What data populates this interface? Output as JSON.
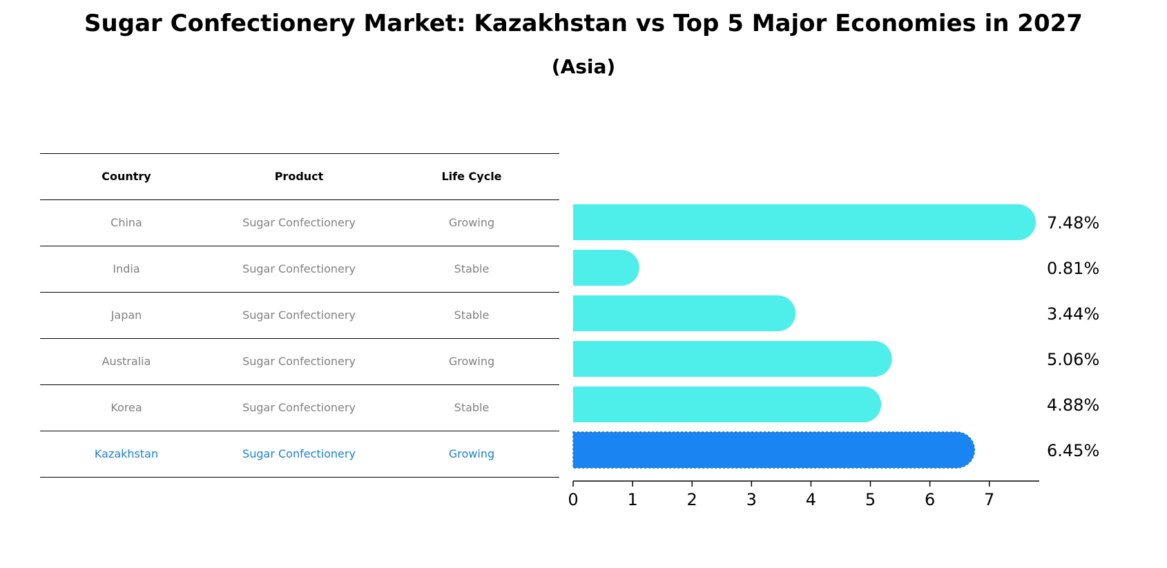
{
  "title": "Sugar Confectionery Market: Kazakhstan vs Top 5 Major Economies in 2027",
  "subtitle": "(Asia)",
  "table": {
    "headers": [
      "Country",
      "Product",
      "Life Cycle"
    ],
    "rows": [
      {
        "country": "China",
        "product": "Sugar Confectionery",
        "life_cycle": "Growing"
      },
      {
        "country": "India",
        "product": "Sugar Confectionery",
        "life_cycle": "Stable"
      },
      {
        "country": "Japan",
        "product": "Sugar Confectionery",
        "life_cycle": "Stable"
      },
      {
        "country": "Australia",
        "product": "Sugar Confectionery",
        "life_cycle": "Growing"
      },
      {
        "country": "Korea",
        "product": "Sugar Confectionery",
        "life_cycle": "Stable"
      },
      {
        "country": "Kazakhstan",
        "product": "Sugar Confectionery",
        "life_cycle": "Growing"
      }
    ]
  },
  "chart_data": {
    "type": "bar",
    "orientation": "horizontal",
    "title": "Sugar Confectionery Market: Kazakhstan vs Top 5 Major Economies in 2027",
    "subtitle": "(Asia)",
    "categories": [
      "China",
      "India",
      "Japan",
      "Australia",
      "Korea",
      "Kazakhstan"
    ],
    "values": [
      7.48,
      0.81,
      3.44,
      5.06,
      4.88,
      6.45
    ],
    "data_labels": [
      "7.48%",
      "0.81%",
      "3.44%",
      "5.06%",
      "4.88%",
      "6.45%"
    ],
    "highlight": "Kazakhstan",
    "xlim": [
      0,
      7.85
    ],
    "xticks": [
      0,
      1,
      2,
      3,
      4,
      5,
      6,
      7
    ],
    "grid": false,
    "colors": {
      "default": "#4eeeea",
      "highlight": "#1a85f2"
    }
  }
}
